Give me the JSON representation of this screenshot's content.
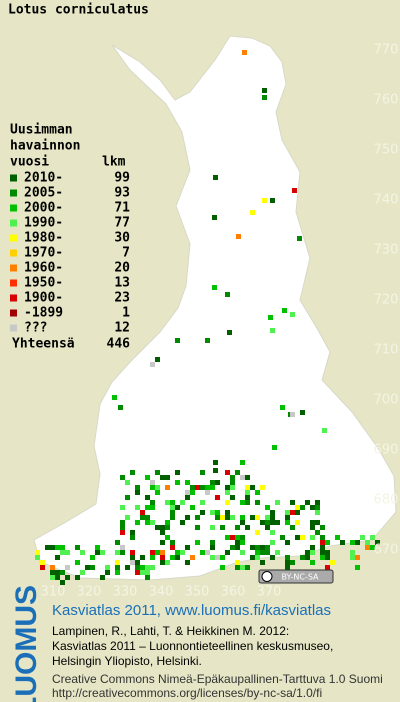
{
  "map": {
    "title": "Lotus corniculatus",
    "legend_heading": [
      "Uusimman",
      "havainnon"
    ],
    "legend_col_year": "vuosi",
    "legend_col_count": "lkm",
    "legend": [
      {
        "label": "2010-",
        "count": "99",
        "color": "#006000"
      },
      {
        "label": "2005-",
        "count": "93",
        "color": "#008a00"
      },
      {
        "label": "2000-",
        "count": "71",
        "color": "#00c000"
      },
      {
        "label": "1990-",
        "count": "77",
        "color": "#50f050"
      },
      {
        "label": "1980-",
        "count": "30",
        "color": "#ffff00"
      },
      {
        "label": "1970-",
        "count": "7",
        "color": "#ffd000"
      },
      {
        "label": "1960-",
        "count": "20",
        "color": "#ff8000"
      },
      {
        "label": "1950-",
        "count": "13",
        "color": "#ff3000"
      },
      {
        "label": "1900-",
        "count": "23",
        "color": "#d80000"
      },
      {
        "label": "-1899",
        "count": "1",
        "color": "#a00000"
      },
      {
        "label": "???",
        "count": "12",
        "color": "#c8c8c8"
      }
    ],
    "total_label": "Yhteensä",
    "total": "446",
    "xlim": [
      305,
      375
    ],
    "ylim": [
      665,
      775
    ],
    "xticks": [
      310,
      320,
      330,
      340,
      350,
      360,
      370
    ],
    "yticks": [
      670,
      680,
      690,
      700,
      710,
      720,
      730,
      740,
      750,
      760,
      770
    ],
    "license_badge": "BY-NC-SA"
  },
  "footer": {
    "logo": "LUOMUS",
    "headline": "Kasviatlas 2011, www.luomus.fi/kasviatlas",
    "citation": [
      "Lampinen, R., Lahti, T. & Heikkinen M. 2012:",
      "Kasviatlas 2011 – Luonnontieteellinen keskusmuseo,",
      "Helsingin Yliopisto, Helsinki."
    ],
    "license": [
      "Creative Commons Nimeä-Epäkaupallinen-Tarttuva 1.0 Suomi",
      "http://creativecommons.org/licenses/by-nc-sa/1.0/fi"
    ]
  }
}
